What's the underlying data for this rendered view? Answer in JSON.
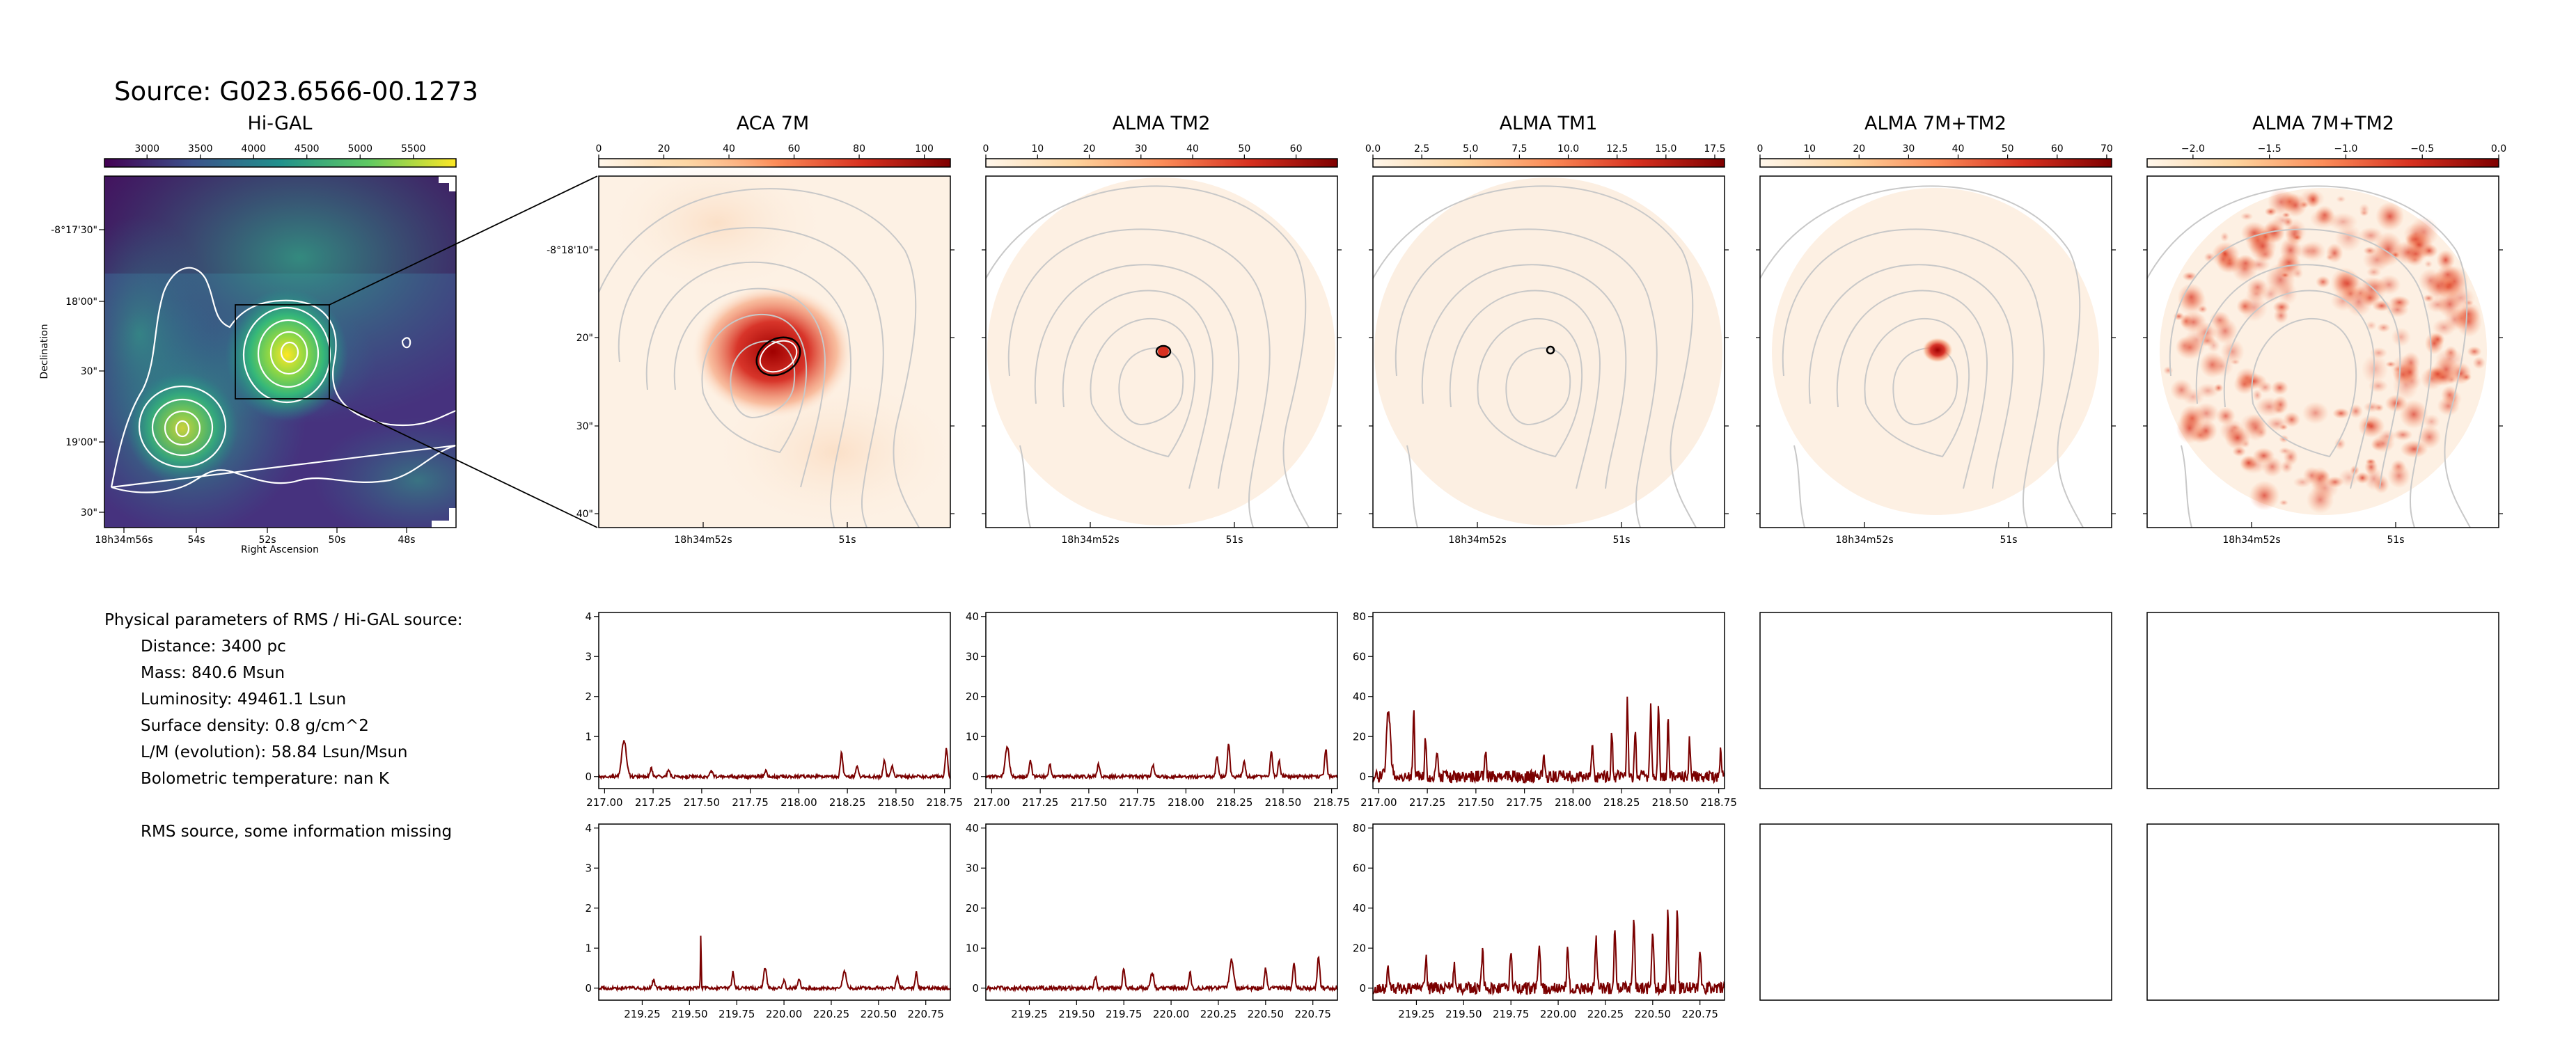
{
  "source_title": "Source: G023.6566-00.1273",
  "colors": {
    "spectrum_line": "#7a0000",
    "contour": "#bbbbbb",
    "higal_contour": "#ffffff",
    "frame": "#000000"
  },
  "params": {
    "header": "Physical parameters of RMS / Hi-GAL source:",
    "lines": [
      "Distance: 3400 pc",
      "Mass: 840.6 Msun",
      "Luminosity: 49461.1 Lsun",
      "Surface density: 0.8 g/cm^2",
      "L/M (evolution): 58.84 Lsun/Msun",
      "Bolometric temperature: nan K"
    ],
    "note": "RMS source, some information missing"
  },
  "chart_data": [
    {
      "type": "heatmap",
      "title": "Hi-GAL",
      "colormap": "viridis",
      "colorbar": {
        "range": [
          2600,
          5900
        ],
        "ticks": [
          "3000",
          "3500",
          "4000",
          "4500",
          "5000",
          "5500"
        ],
        "tick_values": [
          3000,
          3500,
          4000,
          4500,
          5000,
          5500
        ]
      },
      "xlabel": "Right Ascension",
      "ylabel": "Declination",
      "x_ticks": [
        "18h34m56s",
        "54s",
        "52s",
        "50s",
        "48s"
      ],
      "y_ticks": [
        "-8°17'30\"",
        "18'00\"",
        "30\"",
        "19'00\"",
        "30\""
      ],
      "grid": false
    },
    {
      "type": "heatmap",
      "title": "ACA 7M",
      "colormap": "OrRd",
      "colorbar": {
        "range": [
          0,
          108
        ],
        "ticks": [
          "0",
          "20",
          "40",
          "60",
          "80",
          "100"
        ],
        "tick_values": [
          0,
          20,
          40,
          60,
          80,
          100
        ]
      },
      "x_ticks": [
        "18h34m52s",
        "51s"
      ],
      "y_ticks": [
        "-8°18'10\"",
        "20\"",
        "30\"",
        "40\""
      ],
      "grid": false
    },
    {
      "type": "heatmap",
      "title": "ALMA TM2",
      "colormap": "OrRd",
      "colorbar": {
        "range": [
          0,
          68
        ],
        "ticks": [
          "0",
          "10",
          "20",
          "30",
          "40",
          "50",
          "60"
        ],
        "tick_values": [
          0,
          10,
          20,
          30,
          40,
          50,
          60
        ]
      },
      "x_ticks": [
        "18h34m52s",
        "51s"
      ],
      "grid": false
    },
    {
      "type": "heatmap",
      "title": "ALMA TM1",
      "colormap": "OrRd",
      "colorbar": {
        "range": [
          0,
          18
        ],
        "ticks": [
          "0.0",
          "2.5",
          "5.0",
          "7.5",
          "10.0",
          "12.5",
          "15.0",
          "17.5"
        ],
        "tick_values": [
          0,
          2.5,
          5,
          7.5,
          10,
          12.5,
          15,
          17.5
        ]
      },
      "x_ticks": [
        "18h34m52s",
        "51s"
      ],
      "grid": false
    },
    {
      "type": "heatmap",
      "title": "ALMA 7M+TM2",
      "colormap": "OrRd",
      "colorbar": {
        "range": [
          0,
          71
        ],
        "ticks": [
          "0",
          "10",
          "20",
          "30",
          "40",
          "50",
          "60",
          "70"
        ],
        "tick_values": [
          0,
          10,
          20,
          30,
          40,
          50,
          60,
          70
        ]
      },
      "x_ticks": [
        "18h34m52s",
        "51s"
      ],
      "grid": false
    },
    {
      "type": "heatmap",
      "title": "ALMA 7M+TM2",
      "colormap": "OrRd",
      "colorbar": {
        "range": [
          -2.3,
          0.0
        ],
        "ticks": [
          "−2.0",
          "−1.5",
          "−1.0",
          "−0.5",
          "0.0"
        ],
        "tick_values": [
          -2.0,
          -1.5,
          -1.0,
          -0.5,
          0.0
        ]
      },
      "x_ticks": [
        "18h34m52s",
        "51s"
      ],
      "grid": false
    },
    {
      "type": "line",
      "xlim": [
        216.97,
        218.78
      ],
      "ylim": [
        -0.3,
        4.1
      ],
      "x_ticks": [
        "217.00",
        "217.25",
        "217.50",
        "217.75",
        "218.00",
        "218.25",
        "218.50",
        "218.75"
      ],
      "x_tick_values": [
        217.0,
        217.25,
        217.5,
        217.75,
        218.0,
        218.25,
        218.5,
        218.75
      ],
      "y_ticks": [
        "0",
        "1",
        "2",
        "3",
        "4"
      ],
      "y_tick_values": [
        0,
        1,
        2,
        3,
        4
      ],
      "noise": 0.04,
      "peaks": [
        [
          217.1,
          0.9,
          0.012
        ],
        [
          217.24,
          0.2,
          0.006
        ],
        [
          217.33,
          0.18,
          0.006
        ],
        [
          217.55,
          0.15,
          0.006
        ],
        [
          217.83,
          0.15,
          0.006
        ],
        [
          218.22,
          0.6,
          0.006
        ],
        [
          218.3,
          0.3,
          0.006
        ],
        [
          218.44,
          0.4,
          0.006
        ],
        [
          218.48,
          0.25,
          0.006
        ],
        [
          218.76,
          0.7,
          0.006
        ]
      ]
    },
    {
      "type": "line",
      "xlim": [
        216.97,
        218.78
      ],
      "ylim": [
        -3,
        41
      ],
      "x_ticks": [
        "217.00",
        "217.25",
        "217.50",
        "217.75",
        "218.00",
        "218.25",
        "218.50",
        "218.75"
      ],
      "x_tick_values": [
        217.0,
        217.25,
        217.5,
        217.75,
        218.0,
        218.25,
        218.5,
        218.75
      ],
      "y_ticks": [
        "0",
        "10",
        "20",
        "30",
        "40"
      ],
      "y_tick_values": [
        0,
        10,
        20,
        30,
        40
      ],
      "noise": 0.4,
      "peaks": [
        [
          217.08,
          7.5,
          0.01
        ],
        [
          217.2,
          4,
          0.006
        ],
        [
          217.3,
          3,
          0.006
        ],
        [
          217.55,
          3,
          0.006
        ],
        [
          217.83,
          3,
          0.006
        ],
        [
          218.16,
          5,
          0.006
        ],
        [
          218.22,
          8,
          0.006
        ],
        [
          218.3,
          4,
          0.006
        ],
        [
          218.44,
          6,
          0.006
        ],
        [
          218.48,
          4,
          0.006
        ],
        [
          218.72,
          7,
          0.006
        ]
      ]
    },
    {
      "type": "line",
      "xlim": [
        216.97,
        218.78
      ],
      "ylim": [
        -6,
        82
      ],
      "x_ticks": [
        "217.00",
        "217.25",
        "217.50",
        "217.75",
        "218.00",
        "218.25",
        "218.50",
        "218.75"
      ],
      "x_tick_values": [
        217.0,
        217.25,
        217.5,
        217.75,
        218.0,
        218.25,
        218.5,
        218.75
      ],
      "y_ticks": [
        "0",
        "20",
        "40",
        "60",
        "80"
      ],
      "y_tick_values": [
        0,
        20,
        40,
        60,
        80
      ],
      "noise": 3,
      "peaks": [
        [
          217.05,
          33,
          0.01
        ],
        [
          217.18,
          32,
          0.004
        ],
        [
          217.24,
          20,
          0.004
        ],
        [
          217.3,
          15,
          0.004
        ],
        [
          217.55,
          14,
          0.004
        ],
        [
          217.85,
          12,
          0.004
        ],
        [
          218.1,
          18,
          0.004
        ],
        [
          218.2,
          22,
          0.004
        ],
        [
          218.28,
          38,
          0.004
        ],
        [
          218.32,
          25,
          0.004
        ],
        [
          218.4,
          35,
          0.004
        ],
        [
          218.44,
          38,
          0.004
        ],
        [
          218.49,
          30,
          0.004
        ],
        [
          218.6,
          18,
          0.004
        ],
        [
          218.76,
          15,
          0.004
        ]
      ]
    },
    {
      "type": "line",
      "xlim": [
        219.02,
        220.88
      ],
      "ylim": [
        -0.3,
        4.1
      ],
      "x_ticks": [
        "219.25",
        "219.50",
        "219.75",
        "220.00",
        "220.25",
        "220.50",
        "220.75"
      ],
      "x_tick_values": [
        219.25,
        219.5,
        219.75,
        220.0,
        220.25,
        220.5,
        220.75
      ],
      "y_ticks": [
        "0",
        "1",
        "2",
        "3",
        "4"
      ],
      "y_tick_values": [
        0,
        1,
        2,
        3,
        4
      ],
      "noise": 0.04,
      "peaks": [
        [
          219.31,
          0.2,
          0.006
        ],
        [
          219.56,
          1.35,
          0.002
        ],
        [
          219.73,
          0.4,
          0.006
        ],
        [
          219.9,
          0.5,
          0.008
        ],
        [
          220.0,
          0.2,
          0.006
        ],
        [
          220.08,
          0.25,
          0.006
        ],
        [
          220.32,
          0.4,
          0.01
        ],
        [
          220.6,
          0.3,
          0.006
        ],
        [
          220.7,
          0.4,
          0.006
        ]
      ]
    },
    {
      "type": "line",
      "xlim": [
        219.02,
        220.88
      ],
      "ylim": [
        -3,
        41
      ],
      "x_ticks": [
        "219.25",
        "219.50",
        "219.75",
        "220.00",
        "220.25",
        "220.50",
        "220.75"
      ],
      "x_tick_values": [
        219.25,
        219.5,
        219.75,
        220.0,
        220.25,
        220.5,
        220.75
      ],
      "y_ticks": [
        "0",
        "10",
        "20",
        "30",
        "40"
      ],
      "y_tick_values": [
        0,
        10,
        20,
        30,
        40
      ],
      "noise": 0.5,
      "peaks": [
        [
          219.6,
          3,
          0.006
        ],
        [
          219.75,
          5,
          0.006
        ],
        [
          219.9,
          4,
          0.008
        ],
        [
          220.1,
          4,
          0.006
        ],
        [
          220.32,
          7,
          0.01
        ],
        [
          220.5,
          5,
          0.006
        ],
        [
          220.65,
          6,
          0.006
        ],
        [
          220.78,
          8,
          0.006
        ]
      ]
    },
    {
      "type": "line",
      "xlim": [
        219.02,
        220.88
      ],
      "ylim": [
        -6,
        82
      ],
      "x_ticks": [
        "219.25",
        "219.50",
        "219.75",
        "220.00",
        "220.25",
        "220.50",
        "220.75"
      ],
      "x_tick_values": [
        219.25,
        219.5,
        219.75,
        220.0,
        220.25,
        220.5,
        220.75
      ],
      "y_ticks": [
        "0",
        "20",
        "40",
        "60",
        "80"
      ],
      "y_tick_values": [
        0,
        20,
        40,
        60,
        80
      ],
      "noise": 3,
      "peaks": [
        [
          219.1,
          12,
          0.005
        ],
        [
          219.3,
          15,
          0.005
        ],
        [
          219.45,
          12,
          0.005
        ],
        [
          219.6,
          18,
          0.005
        ],
        [
          219.75,
          20,
          0.005
        ],
        [
          219.9,
          22,
          0.005
        ],
        [
          220.05,
          18,
          0.005
        ],
        [
          220.2,
          25,
          0.005
        ],
        [
          220.3,
          28,
          0.005
        ],
        [
          220.4,
          35,
          0.005
        ],
        [
          220.5,
          30,
          0.005
        ],
        [
          220.58,
          38,
          0.004
        ],
        [
          220.63,
          40,
          0.004
        ],
        [
          220.75,
          20,
          0.005
        ]
      ]
    },
    {
      "type": "line",
      "empty": true
    },
    {
      "type": "line",
      "empty": true
    },
    {
      "type": "line",
      "empty": true
    },
    {
      "type": "line",
      "empty": true
    }
  ]
}
